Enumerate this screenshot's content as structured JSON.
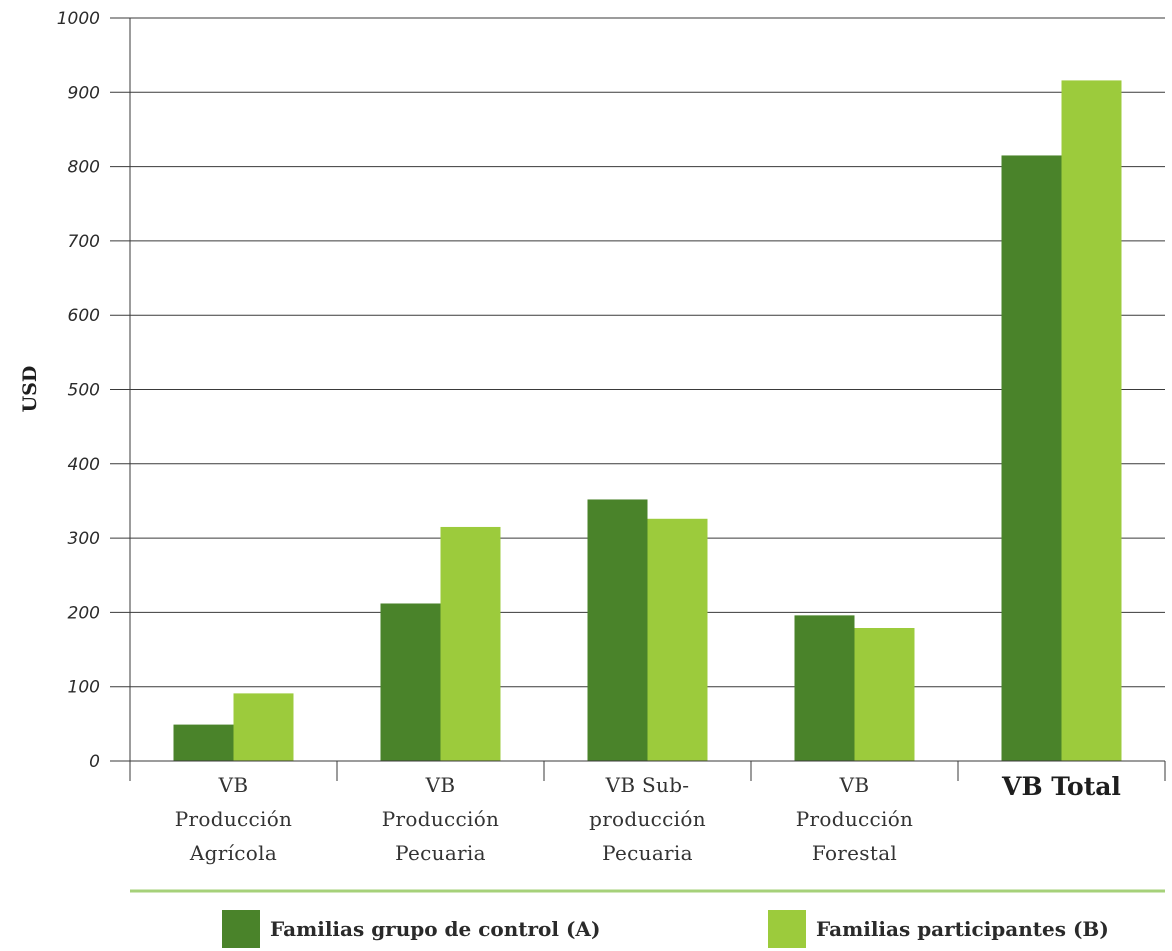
{
  "chart_data": {
    "type": "bar",
    "ylabel": "USD",
    "ylim": [
      0,
      1000
    ],
    "yticks": [
      0,
      100,
      200,
      300,
      400,
      500,
      600,
      700,
      800,
      900,
      1000
    ],
    "grid": true,
    "categories": [
      {
        "lines": [
          "VB",
          "Producción",
          "Agrícola"
        ],
        "bold": false
      },
      {
        "lines": [
          "VB",
          "Producción",
          "Pecuaria"
        ],
        "bold": false
      },
      {
        "lines": [
          "VB Sub-",
          "producción",
          "Pecuaria"
        ],
        "bold": false
      },
      {
        "lines": [
          "VB",
          "Producción",
          "Forestal"
        ],
        "bold": false
      },
      {
        "lines": [
          "VB Total"
        ],
        "bold": true
      }
    ],
    "series": [
      {
        "name": "Familias grupo de control (A)",
        "color": "#4a832a",
        "values": [
          49,
          212,
          352,
          196,
          815
        ]
      },
      {
        "name": "Familias participantes (B)",
        "color": "#9ccb3c",
        "values": [
          91,
          315,
          326,
          179,
          916
        ]
      }
    ],
    "legend_position": "bottom",
    "legend_rule_color": "#a6d17a"
  }
}
